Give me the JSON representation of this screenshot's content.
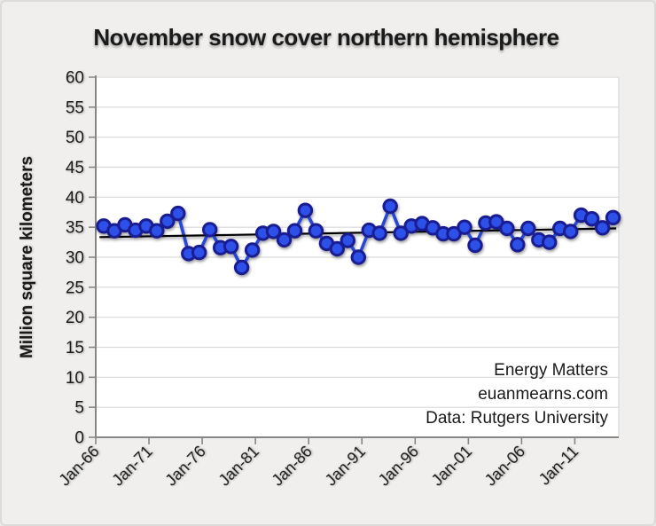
{
  "chart_data": {
    "type": "line",
    "title": "November snow cover northern hemisphere",
    "xlabel": "",
    "ylabel": "Million square kilometers",
    "ylim": [
      0,
      60
    ],
    "y_ticks": [
      0,
      5,
      10,
      15,
      20,
      25,
      30,
      35,
      40,
      45,
      50,
      55,
      60
    ],
    "x_ticks": [
      {
        "year": 1966,
        "label": "Jan-66"
      },
      {
        "year": 1971,
        "label": "Jan-71"
      },
      {
        "year": 1976,
        "label": "Jan-76"
      },
      {
        "year": 1981,
        "label": "Jan-81"
      },
      {
        "year": 1986,
        "label": "Jan-86"
      },
      {
        "year": 1991,
        "label": "Jan-91"
      },
      {
        "year": 1996,
        "label": "Jan-96"
      },
      {
        "year": 2001,
        "label": "Jan-01"
      },
      {
        "year": 2006,
        "label": "Jan-06"
      },
      {
        "year": 2011,
        "label": "Jan-11"
      }
    ],
    "grid": "horizontal",
    "legend": "none",
    "series": [
      {
        "name": "November snow cover",
        "years": [
          1966,
          1967,
          1968,
          1969,
          1970,
          1971,
          1972,
          1973,
          1974,
          1975,
          1976,
          1977,
          1978,
          1979,
          1980,
          1981,
          1982,
          1983,
          1984,
          1985,
          1986,
          1987,
          1988,
          1989,
          1990,
          1991,
          1992,
          1993,
          1994,
          1995,
          1996,
          1997,
          1998,
          1999,
          2000,
          2001,
          2002,
          2003,
          2004,
          2005,
          2006,
          2007,
          2008,
          2009,
          2010,
          2011,
          2012,
          2013,
          2014
        ],
        "values": [
          35.2,
          34.4,
          35.4,
          34.5,
          35.2,
          34.4,
          36.0,
          37.3,
          30.6,
          30.8,
          34.6,
          31.6,
          31.8,
          28.3,
          31.2,
          34.0,
          34.3,
          32.9,
          34.4,
          37.8,
          34.4,
          32.3,
          31.4,
          32.8,
          30.0,
          34.5,
          34.0,
          38.5,
          34.0,
          35.2,
          35.6,
          34.9,
          33.9,
          33.9,
          35.0,
          32.0,
          35.7,
          35.9,
          34.8,
          32.1,
          34.8,
          32.9,
          32.5,
          34.8,
          34.3,
          37.0,
          36.4,
          34.9,
          36.6
        ]
      }
    ],
    "trendline": {
      "x1_year": 1965.6,
      "y1": 33.35,
      "x2_year": 2014.3,
      "y2": 34.8
    },
    "watermark": [
      "Energy Matters",
      "euanmearns.com",
      "Data: Rutgers University"
    ],
    "colors": {
      "marker_fill": "#2d50e8",
      "marker_stroke": "#1a1c92",
      "line": "#2746d2",
      "trendline": "#000000",
      "grid": "#d9d9d9",
      "axis": "#868686",
      "tick_text": "#1a1a1a",
      "watermark_text": "#b5b5b5",
      "background": "#f0efee",
      "plot_background": "#ffffff"
    }
  }
}
